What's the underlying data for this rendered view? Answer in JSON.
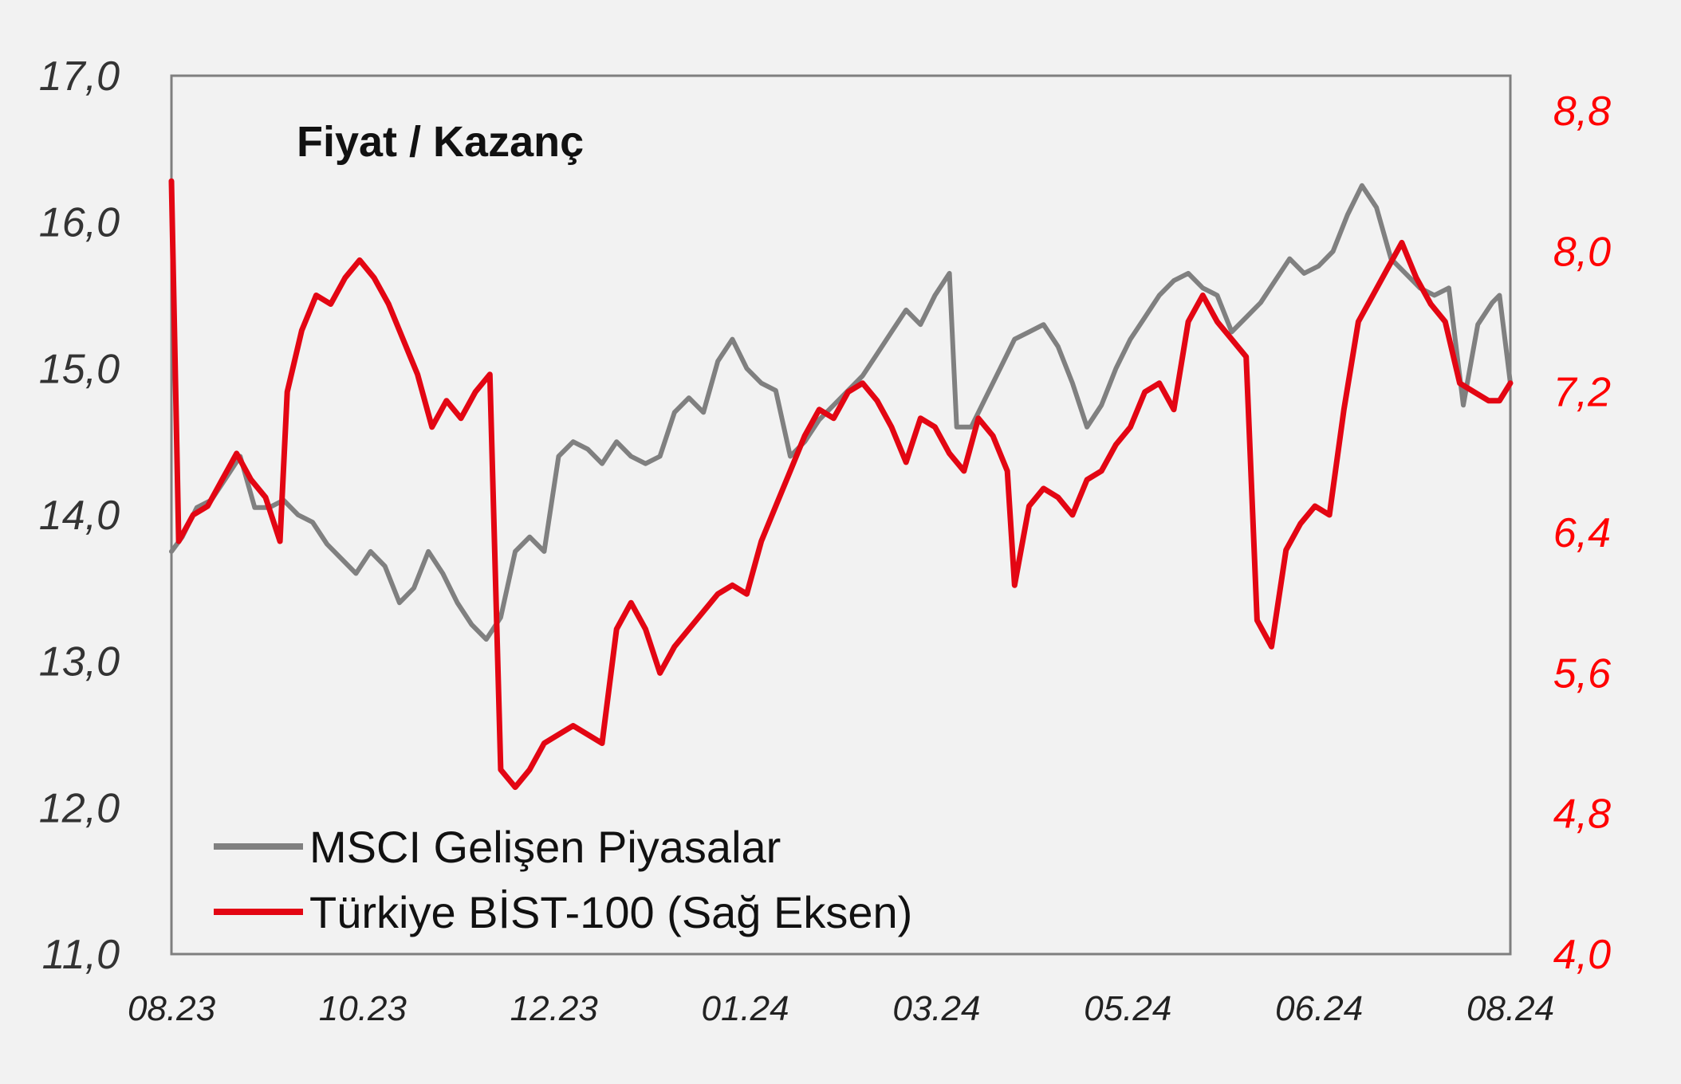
{
  "chart_data": {
    "type": "line",
    "title": "Fiyat / Kazanç",
    "x_ticks": [
      "08.23",
      "10.23",
      "12.23",
      "01.24",
      "03.24",
      "05.24",
      "06.24",
      "08.24"
    ],
    "y_left": {
      "ylim": [
        11.0,
        17.0
      ],
      "ticks": [
        "11,0",
        "12,0",
        "13,0",
        "14,0",
        "15,0",
        "16,0",
        "17,0"
      ]
    },
    "y_right": {
      "ylim": [
        4.0,
        9.0
      ],
      "ticks": [
        "4,0",
        "4,8",
        "5,6",
        "6,4",
        "7,2",
        "8,0",
        "8,8"
      ]
    },
    "legend": {
      "placement": "bottom-left"
    },
    "grid": false,
    "series": [
      {
        "name": "MSCI Gelişen Piyasalar",
        "axis": "left",
        "color": "#808080",
        "points": [
          [
            "2023-08-01",
            13.75
          ],
          [
            "2023-08-04",
            13.85
          ],
          [
            "2023-08-08",
            14.05
          ],
          [
            "2023-08-12",
            14.1
          ],
          [
            "2023-08-16",
            14.25
          ],
          [
            "2023-08-20",
            14.4
          ],
          [
            "2023-08-24",
            14.05
          ],
          [
            "2023-08-28",
            14.05
          ],
          [
            "2023-09-01",
            14.1
          ],
          [
            "2023-09-05",
            14.0
          ],
          [
            "2023-09-09",
            13.95
          ],
          [
            "2023-09-13",
            13.8
          ],
          [
            "2023-09-17",
            13.7
          ],
          [
            "2023-09-21",
            13.6
          ],
          [
            "2023-09-25",
            13.75
          ],
          [
            "2023-09-29",
            13.65
          ],
          [
            "2023-10-03",
            13.4
          ],
          [
            "2023-10-07",
            13.5
          ],
          [
            "2023-10-11",
            13.75
          ],
          [
            "2023-10-15",
            13.6
          ],
          [
            "2023-10-19",
            13.4
          ],
          [
            "2023-10-23",
            13.25
          ],
          [
            "2023-10-27",
            13.15
          ],
          [
            "2023-10-31",
            13.3
          ],
          [
            "2023-11-04",
            13.75
          ],
          [
            "2023-11-08",
            13.85
          ],
          [
            "2023-11-12",
            13.75
          ],
          [
            "2023-11-16",
            14.4
          ],
          [
            "2023-11-20",
            14.5
          ],
          [
            "2023-11-24",
            14.45
          ],
          [
            "2023-11-28",
            14.35
          ],
          [
            "2023-12-02",
            14.5
          ],
          [
            "2023-12-06",
            14.4
          ],
          [
            "2023-12-10",
            14.35
          ],
          [
            "2023-12-14",
            14.4
          ],
          [
            "2023-12-18",
            14.7
          ],
          [
            "2023-12-22",
            14.8
          ],
          [
            "2023-12-26",
            14.7
          ],
          [
            "2023-12-30",
            15.05
          ],
          [
            "2024-01-03",
            15.2
          ],
          [
            "2024-01-07",
            15.0
          ],
          [
            "2024-01-11",
            14.9
          ],
          [
            "2024-01-15",
            14.85
          ],
          [
            "2024-01-19",
            14.4
          ],
          [
            "2024-01-23",
            14.5
          ],
          [
            "2024-01-27",
            14.65
          ],
          [
            "2024-01-31",
            14.75
          ],
          [
            "2024-02-04",
            14.85
          ],
          [
            "2024-02-08",
            14.95
          ],
          [
            "2024-02-12",
            15.1
          ],
          [
            "2024-02-16",
            15.25
          ],
          [
            "2024-02-20",
            15.4
          ],
          [
            "2024-02-24",
            15.3
          ],
          [
            "2024-02-28",
            15.5
          ],
          [
            "2024-03-03",
            15.65
          ],
          [
            "2024-03-05",
            14.6
          ],
          [
            "2024-03-09",
            14.6
          ],
          [
            "2024-03-13",
            14.8
          ],
          [
            "2024-03-17",
            15.0
          ],
          [
            "2024-03-21",
            15.2
          ],
          [
            "2024-03-25",
            15.25
          ],
          [
            "2024-03-29",
            15.3
          ],
          [
            "2024-04-02",
            15.15
          ],
          [
            "2024-04-06",
            14.9
          ],
          [
            "2024-04-10",
            14.6
          ],
          [
            "2024-04-14",
            14.75
          ],
          [
            "2024-04-18",
            15.0
          ],
          [
            "2024-04-22",
            15.2
          ],
          [
            "2024-04-26",
            15.35
          ],
          [
            "2024-04-30",
            15.5
          ],
          [
            "2024-05-04",
            15.6
          ],
          [
            "2024-05-08",
            15.65
          ],
          [
            "2024-05-12",
            15.55
          ],
          [
            "2024-05-16",
            15.5
          ],
          [
            "2024-05-20",
            15.25
          ],
          [
            "2024-05-24",
            15.35
          ],
          [
            "2024-05-28",
            15.45
          ],
          [
            "2024-06-01",
            15.6
          ],
          [
            "2024-06-05",
            15.75
          ],
          [
            "2024-06-09",
            15.65
          ],
          [
            "2024-06-13",
            15.7
          ],
          [
            "2024-06-17",
            15.8
          ],
          [
            "2024-06-21",
            16.05
          ],
          [
            "2024-06-25",
            16.25
          ],
          [
            "2024-06-29",
            16.1
          ],
          [
            "2024-07-03",
            15.75
          ],
          [
            "2024-07-07",
            15.65
          ],
          [
            "2024-07-11",
            15.55
          ],
          [
            "2024-07-15",
            15.5
          ],
          [
            "2024-07-19",
            15.55
          ],
          [
            "2024-07-23",
            14.75
          ],
          [
            "2024-07-27",
            15.3
          ],
          [
            "2024-07-31",
            15.45
          ],
          [
            "2024-08-02",
            15.5
          ],
          [
            "2024-08-05",
            14.9
          ]
        ]
      },
      {
        "name": "Türkiye BİST-100 (Sağ Eksen)",
        "axis": "right",
        "color": "#e30613",
        "points": [
          [
            "2023-08-01",
            8.4
          ],
          [
            "2023-08-03",
            6.35
          ],
          [
            "2023-08-07",
            6.5
          ],
          [
            "2023-08-11",
            6.55
          ],
          [
            "2023-08-15",
            6.7
          ],
          [
            "2023-08-19",
            6.85
          ],
          [
            "2023-08-23",
            6.7
          ],
          [
            "2023-08-27",
            6.6
          ],
          [
            "2023-08-31",
            6.35
          ],
          [
            "2023-09-02",
            7.2
          ],
          [
            "2023-09-06",
            7.55
          ],
          [
            "2023-09-10",
            7.75
          ],
          [
            "2023-09-14",
            7.7
          ],
          [
            "2023-09-18",
            7.85
          ],
          [
            "2023-09-22",
            7.95
          ],
          [
            "2023-09-26",
            7.85
          ],
          [
            "2023-09-30",
            7.7
          ],
          [
            "2023-10-04",
            7.5
          ],
          [
            "2023-10-08",
            7.3
          ],
          [
            "2023-10-12",
            7.0
          ],
          [
            "2023-10-16",
            7.15
          ],
          [
            "2023-10-20",
            7.05
          ],
          [
            "2023-10-24",
            7.2
          ],
          [
            "2023-10-28",
            7.3
          ],
          [
            "2023-10-31",
            5.05
          ],
          [
            "2023-11-04",
            4.95
          ],
          [
            "2023-11-08",
            5.05
          ],
          [
            "2023-11-12",
            5.2
          ],
          [
            "2023-11-16",
            5.25
          ],
          [
            "2023-11-20",
            5.3
          ],
          [
            "2023-11-24",
            5.25
          ],
          [
            "2023-11-28",
            5.2
          ],
          [
            "2023-12-02",
            5.85
          ],
          [
            "2023-12-06",
            6.0
          ],
          [
            "2023-12-10",
            5.85
          ],
          [
            "2023-12-14",
            5.6
          ],
          [
            "2023-12-18",
            5.75
          ],
          [
            "2023-12-22",
            5.85
          ],
          [
            "2023-12-26",
            5.95
          ],
          [
            "2023-12-30",
            6.05
          ],
          [
            "2024-01-03",
            6.1
          ],
          [
            "2024-01-07",
            6.05
          ],
          [
            "2024-01-11",
            6.35
          ],
          [
            "2024-01-15",
            6.55
          ],
          [
            "2024-01-19",
            6.75
          ],
          [
            "2024-01-23",
            6.95
          ],
          [
            "2024-01-27",
            7.1
          ],
          [
            "2024-01-31",
            7.05
          ],
          [
            "2024-02-04",
            7.2
          ],
          [
            "2024-02-08",
            7.25
          ],
          [
            "2024-02-12",
            7.15
          ],
          [
            "2024-02-16",
            7.0
          ],
          [
            "2024-02-20",
            6.8
          ],
          [
            "2024-02-24",
            7.05
          ],
          [
            "2024-02-28",
            7.0
          ],
          [
            "2024-03-03",
            6.85
          ],
          [
            "2024-03-07",
            6.75
          ],
          [
            "2024-03-11",
            7.05
          ],
          [
            "2024-03-15",
            6.95
          ],
          [
            "2024-03-19",
            6.75
          ],
          [
            "2024-03-21",
            6.1
          ],
          [
            "2024-03-25",
            6.55
          ],
          [
            "2024-03-29",
            6.65
          ],
          [
            "2024-04-02",
            6.6
          ],
          [
            "2024-04-06",
            6.5
          ],
          [
            "2024-04-10",
            6.7
          ],
          [
            "2024-04-14",
            6.75
          ],
          [
            "2024-04-18",
            6.9
          ],
          [
            "2024-04-22",
            7.0
          ],
          [
            "2024-04-26",
            7.2
          ],
          [
            "2024-04-30",
            7.25
          ],
          [
            "2024-05-04",
            7.1
          ],
          [
            "2024-05-08",
            7.6
          ],
          [
            "2024-05-12",
            7.75
          ],
          [
            "2024-05-16",
            7.6
          ],
          [
            "2024-05-20",
            7.5
          ],
          [
            "2024-05-24",
            7.4
          ],
          [
            "2024-05-27",
            5.9
          ],
          [
            "2024-05-31",
            5.75
          ],
          [
            "2024-06-04",
            6.3
          ],
          [
            "2024-06-08",
            6.45
          ],
          [
            "2024-06-12",
            6.55
          ],
          [
            "2024-06-16",
            6.5
          ],
          [
            "2024-06-20",
            7.1
          ],
          [
            "2024-06-24",
            7.6
          ],
          [
            "2024-06-28",
            7.75
          ],
          [
            "2024-07-02",
            7.9
          ],
          [
            "2024-07-06",
            8.05
          ],
          [
            "2024-07-10",
            7.85
          ],
          [
            "2024-07-14",
            7.7
          ],
          [
            "2024-07-18",
            7.6
          ],
          [
            "2024-07-22",
            7.25
          ],
          [
            "2024-07-26",
            7.2
          ],
          [
            "2024-07-30",
            7.15
          ],
          [
            "2024-08-02",
            7.15
          ],
          [
            "2024-08-05",
            7.25
          ]
        ]
      }
    ]
  }
}
